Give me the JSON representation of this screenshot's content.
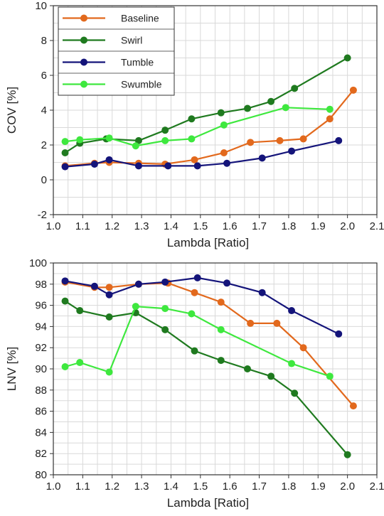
{
  "colors": {
    "Baseline": "#e2691d",
    "Swirl": "#1f7a1f",
    "Tumble": "#14147a",
    "Swumble": "#3ee83e"
  },
  "chart_data": [
    {
      "type": "line",
      "xlabel": "Lambda [Ratio]",
      "ylabel": "COV [%]",
      "xlim": [
        1.0,
        2.1
      ],
      "ylim": [
        -2,
        10
      ],
      "xticks": [
        "1.0",
        "1.1",
        "1.2",
        "1.3",
        "1.4",
        "1.5",
        "1.6",
        "1.7",
        "1.8",
        "1.9",
        "2.0",
        "2.1"
      ],
      "yticks": [
        "-2",
        "0",
        "2",
        "4",
        "6",
        "8",
        "10"
      ],
      "grid": true,
      "legend_position": "top-left",
      "series": [
        {
          "name": "Baseline",
          "x": [
            1.04,
            1.14,
            1.19,
            1.29,
            1.38,
            1.48,
            1.58,
            1.67,
            1.77,
            1.85,
            1.94,
            2.02
          ],
          "y": [
            0.8,
            0.95,
            1.0,
            0.95,
            0.9,
            1.15,
            1.55,
            2.15,
            2.25,
            2.35,
            3.5,
            5.15
          ]
        },
        {
          "name": "Swirl",
          "x": [
            1.04,
            1.09,
            1.18,
            1.29,
            1.38,
            1.47,
            1.57,
            1.66,
            1.74,
            1.82,
            2.0
          ],
          "y": [
            1.55,
            2.1,
            2.35,
            2.25,
            2.85,
            3.5,
            3.85,
            4.1,
            4.5,
            5.25,
            7.0
          ]
        },
        {
          "name": "Tumble",
          "x": [
            1.04,
            1.14,
            1.19,
            1.29,
            1.39,
            1.49,
            1.59,
            1.71,
            1.81,
            1.97
          ],
          "y": [
            0.75,
            0.9,
            1.15,
            0.8,
            0.8,
            0.8,
            0.95,
            1.25,
            1.65,
            2.25
          ]
        },
        {
          "name": "Swumble",
          "x": [
            1.04,
            1.09,
            1.19,
            1.28,
            1.38,
            1.47,
            1.58,
            1.79,
            1.94
          ],
          "y": [
            2.2,
            2.3,
            2.4,
            1.95,
            2.25,
            2.35,
            3.15,
            4.15,
            4.05
          ]
        }
      ]
    },
    {
      "type": "line",
      "xlabel": "Lambda [Ratio]",
      "ylabel": "LNV [%]",
      "xlim": [
        1.0,
        2.1
      ],
      "ylim": [
        80,
        100
      ],
      "xticks": [
        "1.0",
        "1.1",
        "1.2",
        "1.3",
        "1.4",
        "1.5",
        "1.6",
        "1.7",
        "1.8",
        "1.9",
        "2.0",
        "2.1"
      ],
      "yticks": [
        "80",
        "82",
        "84",
        "86",
        "88",
        "90",
        "92",
        "94",
        "96",
        "98",
        "100"
      ],
      "grid": true,
      "series": [
        {
          "name": "Baseline",
          "x": [
            1.04,
            1.14,
            1.19,
            1.29,
            1.39,
            1.48,
            1.57,
            1.67,
            1.76,
            1.85,
            2.02
          ],
          "y": [
            98.2,
            97.7,
            97.7,
            98.0,
            98.1,
            97.2,
            96.3,
            94.3,
            94.3,
            92.0,
            86.5
          ]
        },
        {
          "name": "Swirl",
          "x": [
            1.04,
            1.09,
            1.19,
            1.28,
            1.38,
            1.48,
            1.57,
            1.66,
            1.74,
            1.82,
            2.0
          ],
          "y": [
            96.4,
            95.5,
            94.9,
            95.3,
            93.7,
            91.7,
            90.8,
            90.0,
            89.3,
            87.7,
            81.9
          ]
        },
        {
          "name": "Tumble",
          "x": [
            1.04,
            1.14,
            1.19,
            1.29,
            1.38,
            1.49,
            1.59,
            1.71,
            1.81,
            1.97
          ],
          "y": [
            98.3,
            97.8,
            97.0,
            98.0,
            98.2,
            98.6,
            98.1,
            97.2,
            95.5,
            93.3
          ]
        },
        {
          "name": "Swumble",
          "x": [
            1.04,
            1.09,
            1.19,
            1.28,
            1.38,
            1.47,
            1.57,
            1.81,
            1.94
          ],
          "y": [
            90.2,
            90.6,
            89.7,
            95.9,
            95.7,
            95.2,
            93.7,
            90.5,
            89.3
          ]
        }
      ]
    }
  ]
}
